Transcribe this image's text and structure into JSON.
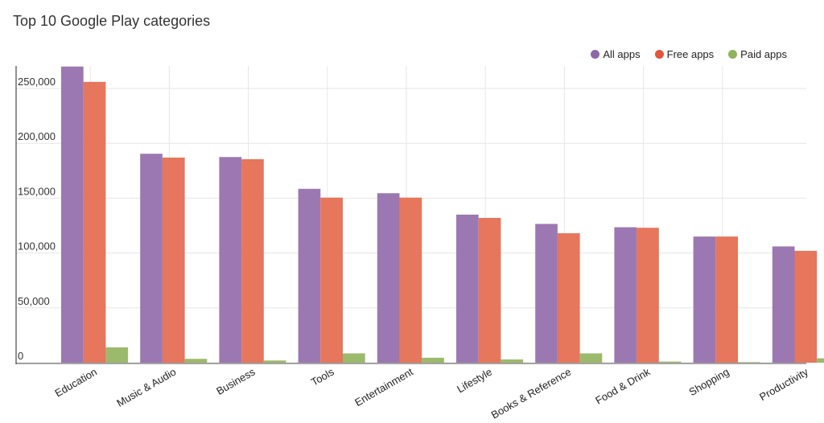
{
  "chart_data": {
    "type": "bar",
    "title": "Top 10 Google Play categories",
    "xlabel": "",
    "ylabel": "",
    "ylim": [
      0,
      270000
    ],
    "yticks": [
      0,
      50000,
      100000,
      150000,
      200000,
      250000
    ],
    "ytick_labels": [
      "0",
      "50,000",
      "100,000",
      "150,000",
      "200,000",
      "250,000"
    ],
    "grid": true,
    "legend_position": "top-right",
    "categories": [
      "Education",
      "Music & Audio",
      "Business",
      "Tools",
      "Entertainment",
      "Lifestyle",
      "Books & Reference",
      "Food & Drink",
      "Shopping",
      "Productivity"
    ],
    "series": [
      {
        "name": "All apps",
        "color": "#9c78b2",
        "values": [
          270000,
          190500,
          187500,
          158500,
          154500,
          135000,
          126500,
          123500,
          115000,
          106000
        ]
      },
      {
        "name": "Free apps",
        "color": "#e6765c",
        "values": [
          256000,
          187000,
          185500,
          150500,
          150500,
          132000,
          118000,
          123000,
          115000,
          102000
        ]
      },
      {
        "name": "Paid apps",
        "color": "#9cba6b",
        "values": [
          14000,
          3500,
          2000,
          8500,
          4500,
          3000,
          8500,
          1000,
          500,
          4000
        ]
      }
    ]
  }
}
